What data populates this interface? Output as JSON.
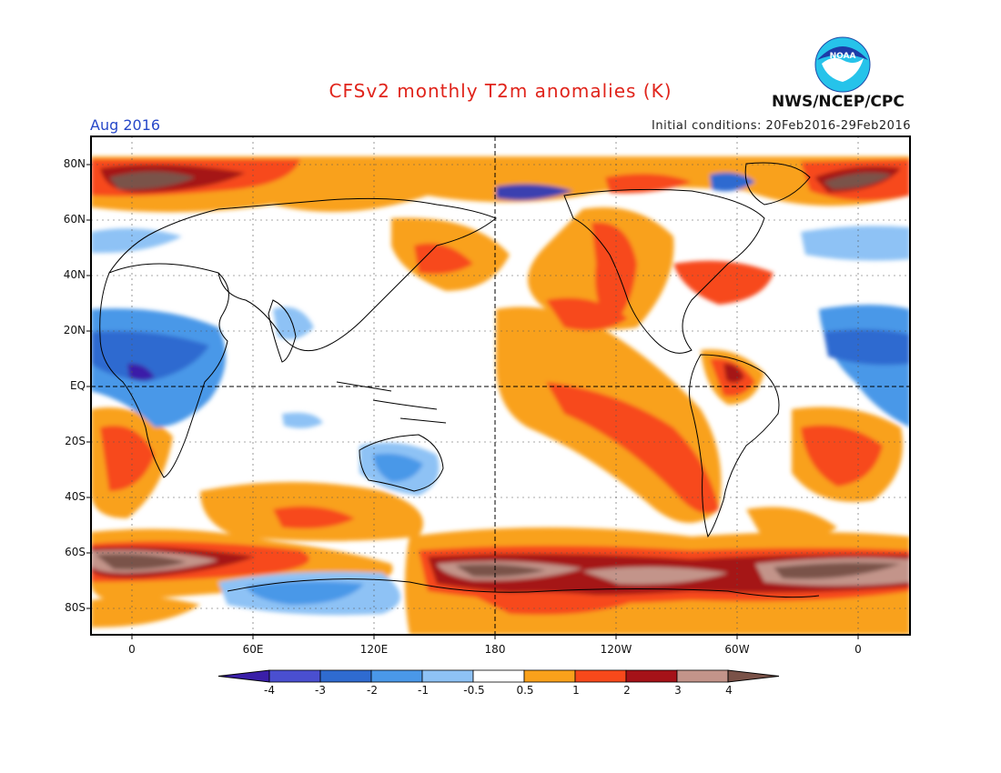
{
  "title": "CFSv2 monthly T2m anomalies (K)",
  "valid_month": "Aug 2016",
  "initial_conditions": "Initial conditions: 20Feb2016-29Feb2016",
  "agency": "NWS/NCEP/CPC",
  "logo_text": "NOAA",
  "lat_labels": [
    "80N",
    "60N",
    "40N",
    "20N",
    "EQ",
    "20S",
    "40S",
    "60S",
    "80S"
  ],
  "lon_labels": [
    "0",
    "60E",
    "120E",
    "180",
    "120W",
    "60W",
    "0"
  ],
  "colorbar": {
    "labels": [
      "-4",
      "-3",
      "-2",
      "-1",
      "-0.5",
      "0.5",
      "1",
      "2",
      "3",
      "4"
    ],
    "colors": [
      "#3a1fa8",
      "#4a4fd0",
      "#2f6bd0",
      "#4a98e8",
      "#8ec2f5",
      "#ffffff",
      "#f9a11b",
      "#f7491b",
      "#a51218",
      "#c3948a",
      "#7a5248"
    ]
  },
  "colors": {
    "title": "#e0241b",
    "month": "#2748c8"
  }
}
